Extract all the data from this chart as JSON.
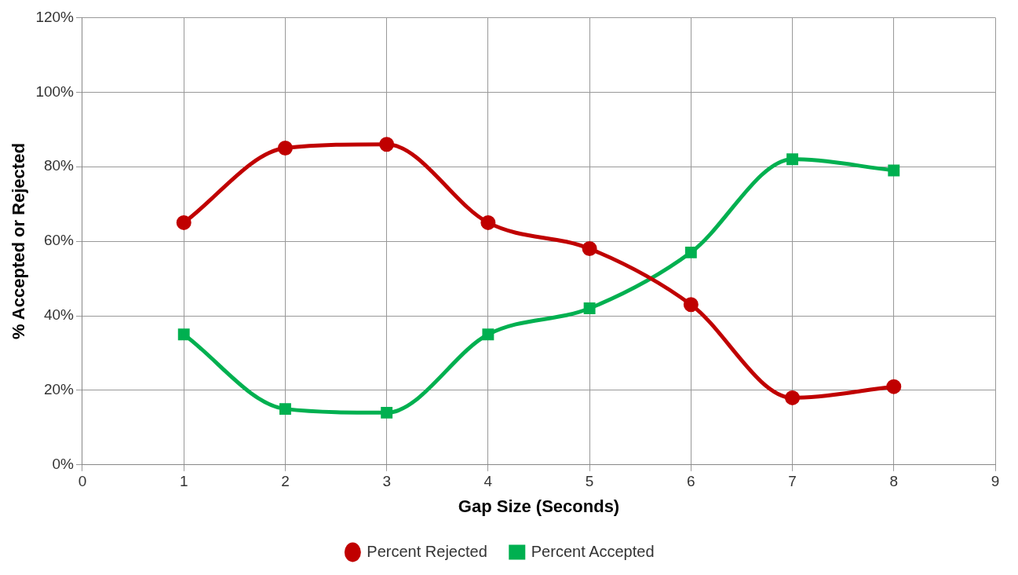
{
  "chart_data": {
    "type": "line",
    "xlabel": "Gap Size (Seconds)",
    "ylabel": "% Accepted or Rejected",
    "x": [
      1,
      2,
      3,
      4,
      5,
      6,
      7,
      8
    ],
    "series": [
      {
        "name": "Percent Rejected",
        "color": "#c00000",
        "marker": "circle",
        "values": [
          65,
          85,
          86,
          65,
          58,
          43,
          18,
          21
        ]
      },
      {
        "name": "Percent Accepted",
        "color": "#00b050",
        "marker": "square",
        "values": [
          35,
          15,
          14,
          35,
          42,
          57,
          82,
          79
        ]
      }
    ],
    "xlim": [
      0,
      9
    ],
    "xticks": [
      0,
      1,
      2,
      3,
      4,
      5,
      6,
      7,
      8,
      9
    ],
    "ylim": [
      0,
      120
    ],
    "yticks": [
      {
        "value": 0,
        "label": "0%"
      },
      {
        "value": 20,
        "label": "20%"
      },
      {
        "value": 40,
        "label": "40%"
      },
      {
        "value": 60,
        "label": "60%"
      },
      {
        "value": 80,
        "label": "80%"
      },
      {
        "value": 100,
        "label": "100%"
      },
      {
        "value": 120,
        "label": "120%"
      }
    ],
    "grid": true,
    "legend": "bottom",
    "line_style": "solid"
  }
}
